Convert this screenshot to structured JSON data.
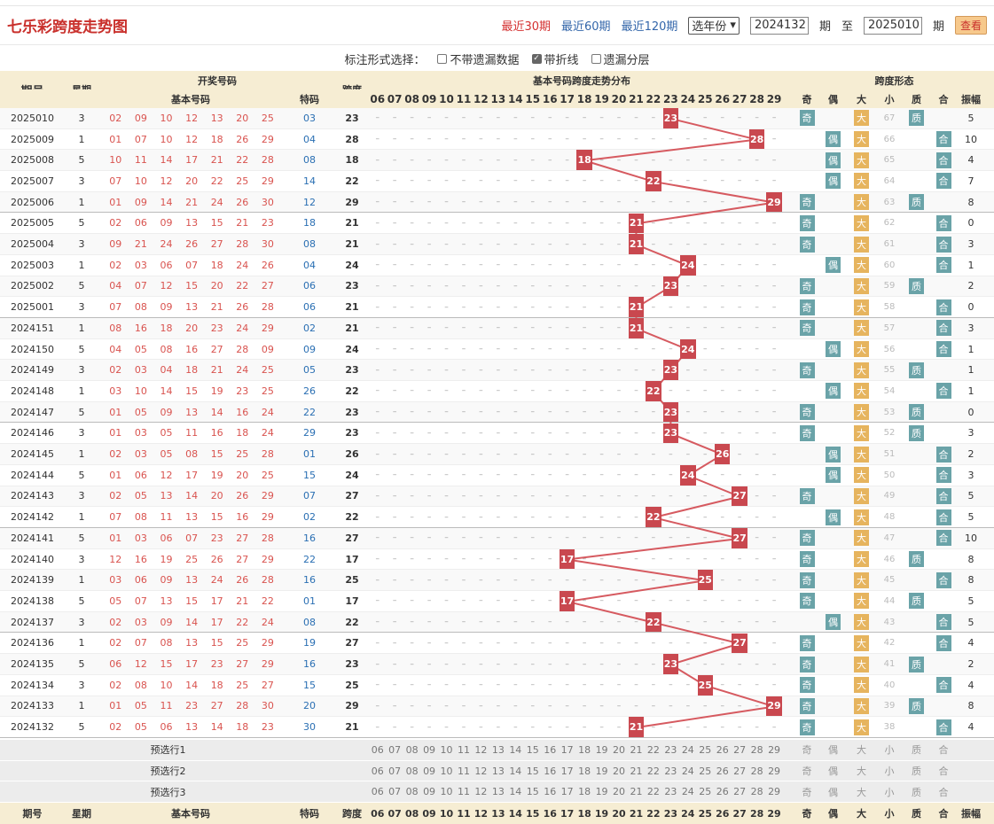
{
  "header": {
    "title": "七乐彩跨度走势图",
    "links": [
      "最近30期",
      "最近60期",
      "最近120期"
    ],
    "active": 0,
    "year_select": "选年份",
    "from": "2024132",
    "period_label": "期",
    "to_label": "至",
    "to": "2025010",
    "period_label2": "期",
    "button": "查看"
  },
  "options": {
    "label": "标注形式选择：",
    "items": [
      {
        "text": "不带遗漏数据",
        "checked": false
      },
      {
        "text": "带折线",
        "checked": true
      },
      {
        "text": "遗漏分层",
        "checked": false
      }
    ]
  },
  "cols": {
    "issue": "期号",
    "week": "星期",
    "draw": "开奖号码",
    "basic": "基本号码",
    "special": "特码",
    "span": "跨度",
    "dist": "基本号码跨度走势分布",
    "form": "跨度形态",
    "forms": [
      "奇",
      "偶",
      "大",
      "小",
      "质",
      "合",
      "振幅"
    ],
    "nums": [
      "06",
      "07",
      "08",
      "09",
      "10",
      "11",
      "12",
      "13",
      "14",
      "15",
      "16",
      "17",
      "18",
      "19",
      "20",
      "21",
      "22",
      "23",
      "24",
      "25",
      "26",
      "27",
      "28",
      "29"
    ]
  },
  "rows": [
    {
      "issue": "2025010",
      "week": "3",
      "nums": [
        "02",
        "09",
        "10",
        "12",
        "13",
        "20",
        "25"
      ],
      "sp": "03",
      "span": "23",
      "odd": "奇",
      "sm": "67",
      "pc": "质",
      "amp": "5"
    },
    {
      "issue": "2025009",
      "week": "1",
      "nums": [
        "01",
        "07",
        "10",
        "12",
        "18",
        "26",
        "29"
      ],
      "sp": "04",
      "span": "28",
      "odd": "偶",
      "sm": "66",
      "pc": "合",
      "amp": "10"
    },
    {
      "issue": "2025008",
      "week": "5",
      "nums": [
        "10",
        "11",
        "14",
        "17",
        "21",
        "22",
        "28"
      ],
      "sp": "08",
      "span": "18",
      "odd": "偶",
      "sm": "65",
      "pc": "合",
      "amp": "4"
    },
    {
      "issue": "2025007",
      "week": "3",
      "nums": [
        "07",
        "10",
        "12",
        "20",
        "22",
        "25",
        "29"
      ],
      "sp": "14",
      "span": "22",
      "odd": "偶",
      "sm": "64",
      "pc": "合",
      "amp": "7"
    },
    {
      "issue": "2025006",
      "week": "1",
      "nums": [
        "01",
        "09",
        "14",
        "21",
        "24",
        "26",
        "30"
      ],
      "sp": "12",
      "span": "29",
      "odd": "奇",
      "sm": "63",
      "pc": "质",
      "amp": "8"
    },
    {
      "issue": "2025005",
      "week": "5",
      "nums": [
        "02",
        "06",
        "09",
        "13",
        "15",
        "21",
        "23"
      ],
      "sp": "18",
      "span": "21",
      "odd": "奇",
      "sm": "62",
      "pc": "合",
      "amp": "0"
    },
    {
      "issue": "2025004",
      "week": "3",
      "nums": [
        "09",
        "21",
        "24",
        "26",
        "27",
        "28",
        "30"
      ],
      "sp": "08",
      "span": "21",
      "odd": "奇",
      "sm": "61",
      "pc": "合",
      "amp": "3"
    },
    {
      "issue": "2025003",
      "week": "1",
      "nums": [
        "02",
        "03",
        "06",
        "07",
        "18",
        "24",
        "26"
      ],
      "sp": "04",
      "span": "24",
      "odd": "偶",
      "sm": "60",
      "pc": "合",
      "amp": "1"
    },
    {
      "issue": "2025002",
      "week": "5",
      "nums": [
        "04",
        "07",
        "12",
        "15",
        "20",
        "22",
        "27"
      ],
      "sp": "06",
      "span": "23",
      "odd": "奇",
      "sm": "59",
      "pc": "质",
      "amp": "2"
    },
    {
      "issue": "2025001",
      "week": "3",
      "nums": [
        "07",
        "08",
        "09",
        "13",
        "21",
        "26",
        "28"
      ],
      "sp": "06",
      "span": "21",
      "odd": "奇",
      "sm": "58",
      "pc": "合",
      "amp": "0"
    },
    {
      "issue": "2024151",
      "week": "1",
      "nums": [
        "08",
        "16",
        "18",
        "20",
        "23",
        "24",
        "29"
      ],
      "sp": "02",
      "span": "21",
      "odd": "奇",
      "sm": "57",
      "pc": "合",
      "amp": "3"
    },
    {
      "issue": "2024150",
      "week": "5",
      "nums": [
        "04",
        "05",
        "08",
        "16",
        "27",
        "28",
        "09"
      ],
      "sp": "09",
      "span": "24",
      "odd": "偶",
      "sm": "56",
      "pc": "合",
      "amp": "1"
    },
    {
      "issue": "2024149",
      "week": "3",
      "nums": [
        "02",
        "03",
        "04",
        "18",
        "21",
        "24",
        "25"
      ],
      "sp": "05",
      "span": "23",
      "odd": "奇",
      "sm": "55",
      "pc": "质",
      "amp": "1"
    },
    {
      "issue": "2024148",
      "week": "1",
      "nums": [
        "03",
        "10",
        "14",
        "15",
        "19",
        "23",
        "25"
      ],
      "sp": "26",
      "span": "22",
      "odd": "偶",
      "sm": "54",
      "pc": "合",
      "amp": "1"
    },
    {
      "issue": "2024147",
      "week": "5",
      "nums": [
        "01",
        "05",
        "09",
        "13",
        "14",
        "16",
        "24"
      ],
      "sp": "22",
      "span": "23",
      "odd": "奇",
      "sm": "53",
      "pc": "质",
      "amp": "0"
    },
    {
      "issue": "2024146",
      "week": "3",
      "nums": [
        "01",
        "03",
        "05",
        "11",
        "16",
        "18",
        "24"
      ],
      "sp": "29",
      "span": "23",
      "odd": "奇",
      "sm": "52",
      "pc": "质",
      "amp": "3"
    },
    {
      "issue": "2024145",
      "week": "1",
      "nums": [
        "02",
        "03",
        "05",
        "08",
        "15",
        "25",
        "28"
      ],
      "sp": "01",
      "span": "26",
      "odd": "偶",
      "sm": "51",
      "pc": "合",
      "amp": "2"
    },
    {
      "issue": "2024144",
      "week": "5",
      "nums": [
        "01",
        "06",
        "12",
        "17",
        "19",
        "20",
        "25"
      ],
      "sp": "15",
      "span": "24",
      "odd": "偶",
      "sm": "50",
      "pc": "合",
      "amp": "3"
    },
    {
      "issue": "2024143",
      "week": "3",
      "nums": [
        "02",
        "05",
        "13",
        "14",
        "20",
        "26",
        "29"
      ],
      "sp": "07",
      "span": "27",
      "odd": "奇",
      "sm": "49",
      "pc": "合",
      "amp": "5"
    },
    {
      "issue": "2024142",
      "week": "1",
      "nums": [
        "07",
        "08",
        "11",
        "13",
        "15",
        "16",
        "29"
      ],
      "sp": "02",
      "span": "22",
      "odd": "偶",
      "sm": "48",
      "pc": "合",
      "amp": "5"
    },
    {
      "issue": "2024141",
      "week": "5",
      "nums": [
        "01",
        "03",
        "06",
        "07",
        "23",
        "27",
        "28"
      ],
      "sp": "16",
      "span": "27",
      "odd": "奇",
      "sm": "47",
      "pc": "合",
      "amp": "10"
    },
    {
      "issue": "2024140",
      "week": "3",
      "nums": [
        "12",
        "16",
        "19",
        "25",
        "26",
        "27",
        "29"
      ],
      "sp": "22",
      "span": "17",
      "odd": "奇",
      "sm": "46",
      "pc": "质",
      "amp": "8"
    },
    {
      "issue": "2024139",
      "week": "1",
      "nums": [
        "03",
        "06",
        "09",
        "13",
        "24",
        "26",
        "28"
      ],
      "sp": "16",
      "span": "25",
      "odd": "奇",
      "sm": "45",
      "pc": "合",
      "amp": "8"
    },
    {
      "issue": "2024138",
      "week": "5",
      "nums": [
        "05",
        "07",
        "13",
        "15",
        "17",
        "21",
        "22"
      ],
      "sp": "01",
      "span": "17",
      "odd": "奇",
      "sm": "44",
      "pc": "质",
      "amp": "5"
    },
    {
      "issue": "2024137",
      "week": "3",
      "nums": [
        "02",
        "03",
        "09",
        "14",
        "17",
        "22",
        "24"
      ],
      "sp": "08",
      "span": "22",
      "odd": "偶",
      "sm": "43",
      "pc": "合",
      "amp": "5"
    },
    {
      "issue": "2024136",
      "week": "1",
      "nums": [
        "02",
        "07",
        "08",
        "13",
        "15",
        "25",
        "29"
      ],
      "sp": "19",
      "span": "27",
      "odd": "奇",
      "sm": "42",
      "pc": "合",
      "amp": "4"
    },
    {
      "issue": "2024135",
      "week": "5",
      "nums": [
        "06",
        "12",
        "15",
        "17",
        "23",
        "27",
        "29"
      ],
      "sp": "16",
      "span": "23",
      "odd": "奇",
      "sm": "41",
      "pc": "质",
      "amp": "2"
    },
    {
      "issue": "2024134",
      "week": "3",
      "nums": [
        "02",
        "08",
        "10",
        "14",
        "18",
        "25",
        "27"
      ],
      "sp": "15",
      "span": "25",
      "odd": "奇",
      "sm": "40",
      "pc": "合",
      "amp": "4"
    },
    {
      "issue": "2024133",
      "week": "1",
      "nums": [
        "01",
        "05",
        "11",
        "23",
        "27",
        "28",
        "30"
      ],
      "sp": "20",
      "span": "29",
      "odd": "奇",
      "sm": "39",
      "pc": "质",
      "amp": "8"
    },
    {
      "issue": "2024132",
      "week": "5",
      "nums": [
        "02",
        "05",
        "06",
        "13",
        "14",
        "18",
        "23"
      ],
      "sp": "30",
      "span": "21",
      "odd": "奇",
      "sm": "38",
      "pc": "合",
      "amp": "4"
    }
  ],
  "pre": [
    "预选行1",
    "预选行2",
    "预选行3"
  ],
  "colors": {
    "hit": "#c9484f",
    "line": "#d65a60",
    "ball": "#d9534f",
    "special": "#2a6fb3",
    "teal": "#6aa3a8",
    "amber": "#e6b45e"
  }
}
